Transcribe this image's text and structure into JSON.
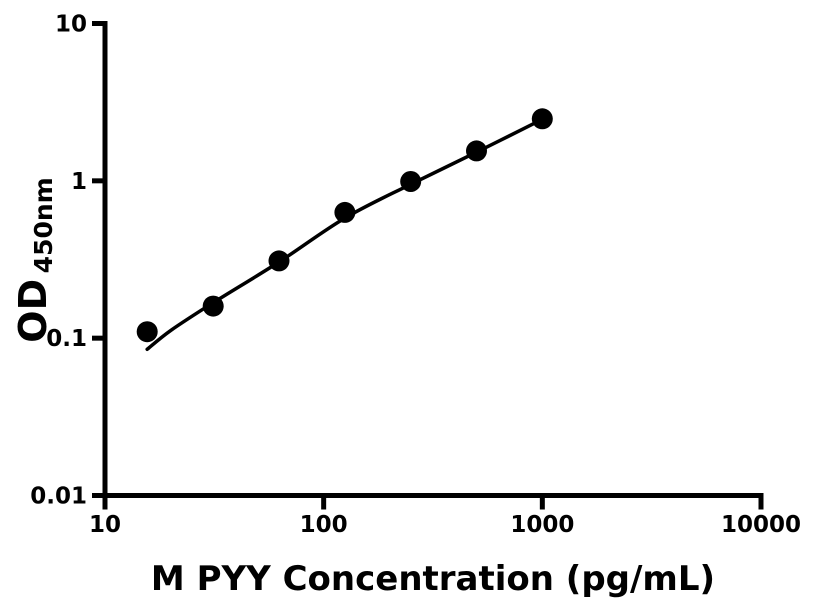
{
  "chart_data": {
    "type": "scatter",
    "title": "",
    "xlabel": "M PYY Concentration (pg/mL)",
    "ylabel": "OD450nm",
    "ylabel_main": "OD",
    "ylabel_sub": "450nm",
    "x_scale": "log",
    "y_scale": "log",
    "xlim": [
      10,
      10000
    ],
    "ylim": [
      0.01,
      10
    ],
    "x_ticks": [
      10,
      100,
      1000,
      10000
    ],
    "x_tick_labels": [
      "10",
      "100",
      "1000",
      "10000"
    ],
    "y_ticks": [
      0.01,
      0.1,
      1,
      10
    ],
    "y_tick_labels": [
      "0.01",
      "0.1",
      "1",
      "10"
    ],
    "grid": false,
    "legend": null,
    "colors": {
      "background": "#ffffff",
      "axis": "#000000",
      "points": "#000000",
      "curve": "#000000",
      "text": "#000000"
    },
    "series": [
      {
        "name": "standard-points",
        "type": "scatter",
        "marker": "filled-circle",
        "color": "#000000",
        "x": [
          15.6,
          31.25,
          62.5,
          125,
          250,
          500,
          1000
        ],
        "y": [
          0.11,
          0.16,
          0.31,
          0.63,
          0.99,
          1.55,
          2.48
        ]
      },
      {
        "name": "fit-curve",
        "type": "line",
        "color": "#000000",
        "x": [
          15.6,
          20,
          31.25,
          62.5,
          125,
          250,
          500,
          1000
        ],
        "y": [
          0.085,
          0.112,
          0.168,
          0.305,
          0.58,
          0.95,
          1.52,
          2.46
        ]
      }
    ]
  }
}
